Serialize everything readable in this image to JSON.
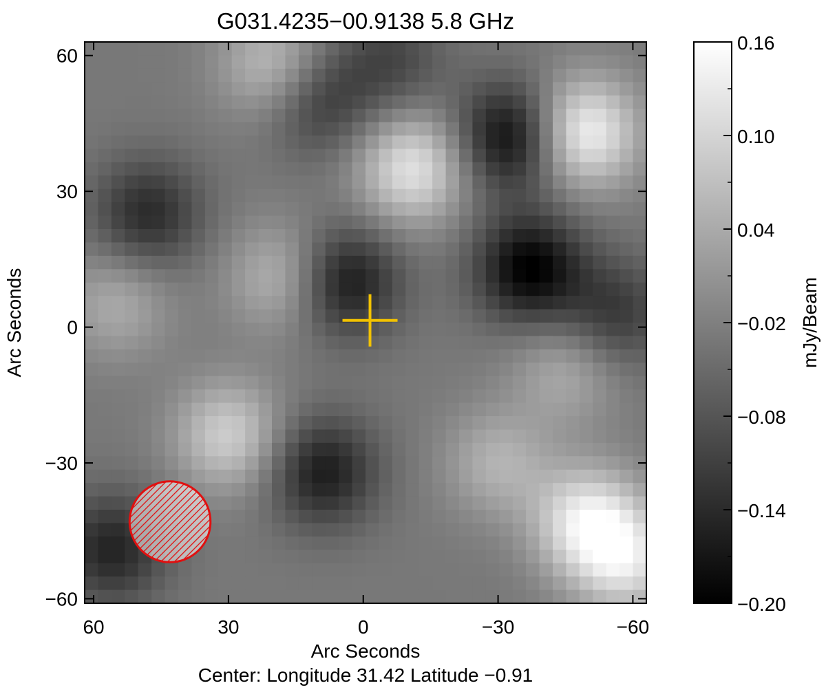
{
  "chart_data": {
    "type": "heatmap",
    "title": "G031.4235−00.9138  5.8 GHz",
    "xlabel": "Arc Seconds",
    "ylabel": "Arc Seconds",
    "footer": "Center:  Longitude 31.42 Latitude −0.91",
    "xlim": [
      62,
      -63
    ],
    "ylim": [
      -61,
      63
    ],
    "x_ticks": [
      60,
      30,
      0,
      -30,
      -60
    ],
    "x_tick_labels": [
      "60",
      "30",
      "0",
      "−30",
      "−60"
    ],
    "y_ticks": [
      60,
      30,
      0,
      -30,
      -60
    ],
    "y_tick_labels": [
      "60",
      "30",
      "0",
      "−30",
      "−60"
    ],
    "colorbar": {
      "label": "mJy/Beam",
      "range": [
        -0.2,
        0.16
      ],
      "ticks": [
        0.16,
        0.1,
        0.04,
        -0.02,
        -0.08,
        -0.14,
        -0.2
      ],
      "tick_labels": [
        "0.16",
        "0.10",
        "0.04",
        "−0.02",
        "−0.08",
        "−0.14",
        "−0.20"
      ],
      "colormap": "grayscale (black = low, white = high)"
    },
    "marker": {
      "type": "cross",
      "x": -1.5,
      "y": 1.5,
      "color": "#f2c200"
    },
    "beam": {
      "center_x": 43,
      "center_y": -43,
      "diameter_arcsec": 18,
      "color": "#e01010",
      "hatched": true
    },
    "image_grid": {
      "columns": 42,
      "rows": 42
    },
    "features": [
      {
        "label": "bright",
        "x": -49,
        "y": 43,
        "value": 0.15
      },
      {
        "label": "bright",
        "x": -50,
        "y": -43,
        "value": 0.13
      },
      {
        "label": "bright",
        "x": -11,
        "y": 35,
        "value": 0.12
      },
      {
        "label": "bright",
        "x": -59,
        "y": -52,
        "value": 0.1
      },
      {
        "label": "bright",
        "x": 30,
        "y": -24,
        "value": 0.09
      },
      {
        "label": "bright",
        "x": 20,
        "y": 58,
        "value": 0.07
      },
      {
        "label": "bright",
        "x": 18,
        "y": 11,
        "value": 0.06
      },
      {
        "label": "bright",
        "x": -30,
        "y": -30,
        "value": 0.05
      },
      {
        "label": "bright",
        "x": -45,
        "y": -10,
        "value": 0.04
      },
      {
        "label": "bright",
        "x": 55,
        "y": 5,
        "value": 0.04
      },
      {
        "label": "dark",
        "x": -37,
        "y": 13,
        "value": -0.2
      },
      {
        "label": "dark",
        "x": -33,
        "y": 42,
        "value": -0.19
      },
      {
        "label": "dark",
        "x": 4,
        "y": 10,
        "value": -0.17
      },
      {
        "label": "dark",
        "x": 9,
        "y": -32,
        "value": -0.16
      },
      {
        "label": "dark",
        "x": 48,
        "y": 25,
        "value": -0.14
      },
      {
        "label": "dark",
        "x": 10,
        "y": 50,
        "value": -0.12
      },
      {
        "label": "dark",
        "x": 56,
        "y": -49,
        "value": -0.15
      },
      {
        "label": "dark",
        "x": -56,
        "y": 3,
        "value": -0.12
      },
      {
        "label": "dark",
        "x": -6,
        "y": 59,
        "value": -0.1
      }
    ]
  }
}
